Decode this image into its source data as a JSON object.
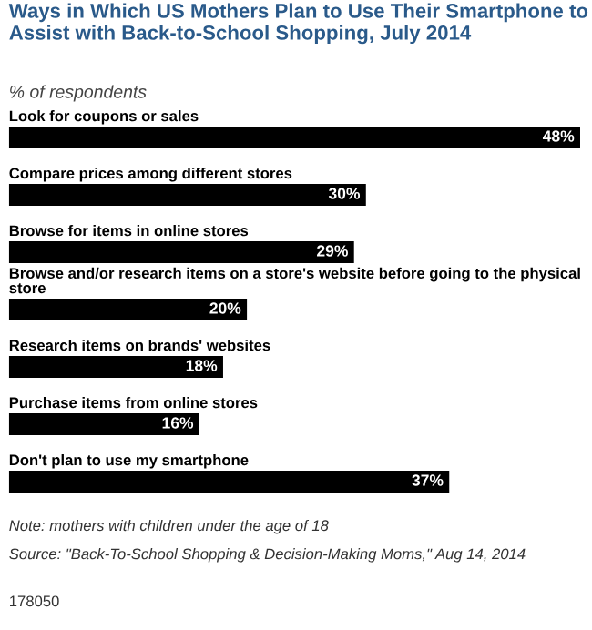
{
  "chart_data": {
    "type": "bar",
    "orientation": "horizontal",
    "title": "Ways in Which US Mothers Plan to Use Their Smartphone to Assist with Back-to-School Shopping, July 2014",
    "subtitle": "% of respondents",
    "categories": [
      "Look for coupons or sales",
      "Compare prices among different stores",
      "Browse for items in online stores",
      "Browse and/or research items on a store's website before going to the physical store",
      "Research items on brands' websites",
      "Purchase items from online stores",
      "Don't plan to use my smartphone"
    ],
    "values": [
      48,
      30,
      29,
      20,
      18,
      16,
      37
    ],
    "value_labels": [
      "48%",
      "30%",
      "29%",
      "20%",
      "18%",
      "16%",
      "37%"
    ],
    "color": "#000000",
    "annotations": [
      "Note: mothers with children under the age of 18",
      "Source: \"Back-To-School Shopping & Decision-Making Moms,\" Aug 14, 2014",
      "178050"
    ]
  }
}
